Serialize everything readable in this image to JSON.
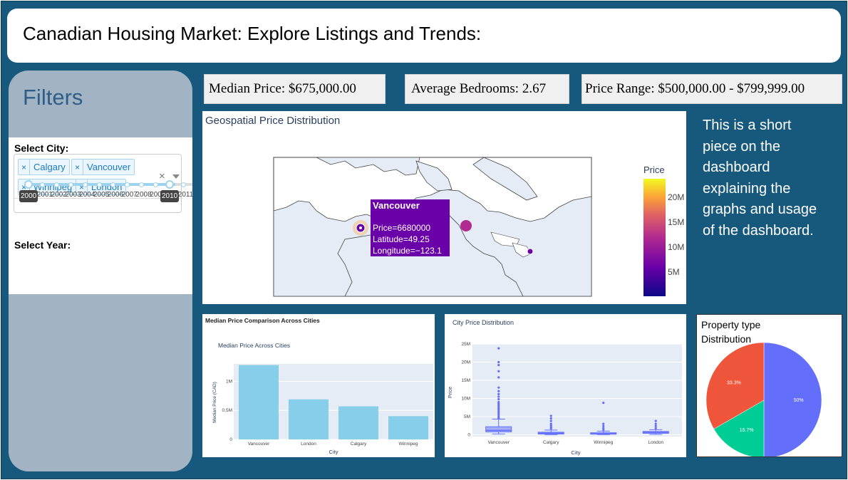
{
  "title": "Canadian Housing Market: Explore Listings and Trends:",
  "filters": {
    "heading": "Filters",
    "city_label": "Select City:",
    "cities": [
      "Calgary",
      "Vancouver",
      "Winnipeg",
      "London"
    ],
    "clear_glyph": "×",
    "year_label": "Select Year:",
    "year_ticks": [
      "2000",
      "2001",
      "2002",
      "2003",
      "2004",
      "2005",
      "2006",
      "2007",
      "2008",
      "2009",
      "2010",
      "2011"
    ],
    "year_start": "2000",
    "year_end": "2010"
  },
  "stats": {
    "median": "Median Price: $675,000.00",
    "bedrooms": "Average Bedrooms: 2.67",
    "range": "Price Range: $500,000.00 - $799,999.00"
  },
  "description": "This is a short piece on the dashboard explaining the graphs and usage of the dashboard.",
  "map": {
    "title": "Geospatial Price Distribution",
    "colorbar_title": "Price",
    "colorbar_ticks": [
      "20M",
      "15M",
      "10M",
      "5M"
    ],
    "tooltip": {
      "city": "Vancouver",
      "price": "Price=6680000",
      "lat": "Latitude=49.25",
      "lon": "Longitude=−123.1"
    }
  },
  "chart_data": [
    {
      "type": "bar",
      "title": "Median Price Comparison Across Cities",
      "subtitle": "Median Price Across Cities",
      "xlabel": "City",
      "ylabel": "Median Price (CAD)",
      "categories": [
        "Vancouver",
        "London",
        "Calgary",
        "Winnipeg"
      ],
      "values": [
        1280000,
        690000,
        570000,
        400000
      ],
      "yticks": [
        {
          "v": 0,
          "label": "0"
        },
        {
          "v": 500000,
          "label": "0.5M"
        },
        {
          "v": 1000000,
          "label": "1M"
        }
      ],
      "ylim": [
        0,
        1300000
      ],
      "color": "#87ceeb"
    },
    {
      "type": "box",
      "title": "City Price Distribution",
      "xlabel": "City",
      "ylabel": "Price",
      "categories": [
        "Vancouver",
        "Calgary",
        "Winnipeg",
        "London"
      ],
      "yticks": [
        {
          "v": 0,
          "label": "0"
        },
        {
          "v": 5000000,
          "label": "5M"
        },
        {
          "v": 10000000,
          "label": "10M"
        },
        {
          "v": 15000000,
          "label": "15M"
        },
        {
          "v": 20000000,
          "label": "20M"
        },
        {
          "v": 25000000,
          "label": "25M"
        }
      ],
      "ylim": [
        -500000,
        25000000
      ],
      "boxes": [
        {
          "q1": 800000,
          "med": 1200000,
          "q3": 2200000,
          "lo": 200000,
          "hi": 4300000,
          "outliers": [
            23800000,
            20000000,
            19200000,
            17500000,
            15800000,
            13000000,
            12000000,
            11200000,
            10500000,
            9800000,
            9000000,
            8500000,
            8000000,
            7500000,
            7000000,
            6500000,
            6000000,
            5500000,
            5000000,
            4600000
          ]
        },
        {
          "q1": 200000,
          "med": 400000,
          "q3": 700000,
          "lo": 50000,
          "hi": 1300000,
          "outliers": [
            5200000,
            4500000,
            3800000,
            3000000,
            2500000,
            2000000,
            1700000
          ]
        },
        {
          "q1": 150000,
          "med": 300000,
          "q3": 550000,
          "lo": 50000,
          "hi": 1000000,
          "outliers": [
            8800000,
            3000000,
            2400000,
            1800000,
            1400000
          ]
        },
        {
          "q1": 400000,
          "med": 650000,
          "q3": 900000,
          "lo": 100000,
          "hi": 1400000,
          "outliers": [
            3800000,
            3000000,
            2400000,
            1800000
          ]
        }
      ],
      "color": "#636efa"
    },
    {
      "type": "pie",
      "title": "Property type Distribution",
      "slices": [
        {
          "label": "50%",
          "value": 50,
          "color": "#636efa"
        },
        {
          "label": "16.7%",
          "value": 16.7,
          "color": "#00cc96"
        },
        {
          "label": "33.3%",
          "value": 33.3,
          "color": "#ef553b"
        }
      ]
    }
  ]
}
